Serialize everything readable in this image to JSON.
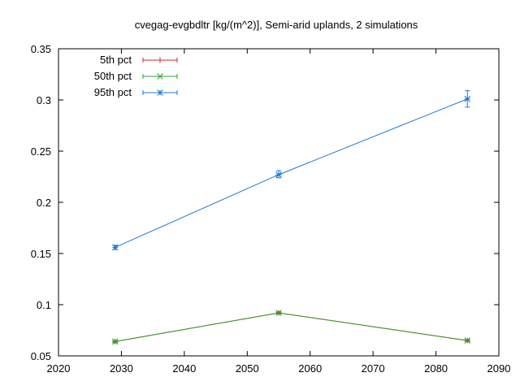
{
  "chart_data": {
    "type": "line",
    "title": "cvegag-evgbdltr [kg/(m^2)], Semi-arid uplands, 2 simulations",
    "xlabel": "",
    "ylabel": "",
    "xlim": [
      2020,
      2090
    ],
    "ylim": [
      0.05,
      0.35
    ],
    "x_ticks": [
      2020,
      2030,
      2040,
      2050,
      2060,
      2070,
      2080,
      2090
    ],
    "x_tick_labels": [
      "2020",
      "2030",
      "2040",
      "2050",
      "2060",
      "2070",
      "2080",
      "2090"
    ],
    "y_ticks": [
      0.05,
      0.1,
      0.15,
      0.2,
      0.25,
      0.3,
      0.35
    ],
    "y_tick_labels": [
      "0.05",
      "0.1",
      "0.15",
      "0.2",
      "0.25",
      "0.3",
      "0.35"
    ],
    "grid": false,
    "legend_position": "top-left",
    "series": [
      {
        "name": "5th pct",
        "color": "#d62728",
        "marker": "plus",
        "x": [
          2029,
          2055,
          2085
        ],
        "values": [
          0.064,
          0.092,
          0.065
        ],
        "err_low": [
          0.063,
          0.091,
          0.064
        ],
        "err_high": [
          0.065,
          0.093,
          0.066
        ]
      },
      {
        "name": "50th pct",
        "color": "#2ca02c",
        "marker": "x",
        "x": [
          2029,
          2055,
          2085
        ],
        "values": [
          0.064,
          0.092,
          0.065
        ],
        "err_low": [
          0.063,
          0.091,
          0.064
        ],
        "err_high": [
          0.065,
          0.093,
          0.066
        ]
      },
      {
        "name": "95th pct",
        "color": "#1f77d0",
        "marker": "star",
        "x": [
          2029,
          2055,
          2085
        ],
        "values": [
          0.156,
          0.227,
          0.301
        ],
        "err_low": [
          0.154,
          0.224,
          0.293
        ],
        "err_high": [
          0.158,
          0.231,
          0.309
        ]
      }
    ]
  }
}
